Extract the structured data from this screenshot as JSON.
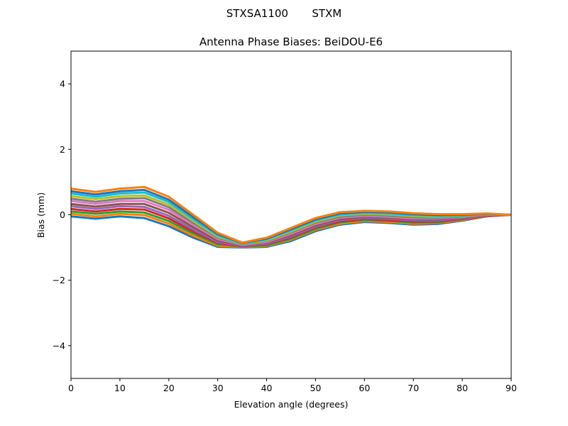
{
  "chart_data": {
    "type": "line",
    "suptitle": "STXSA1100       STXM",
    "title": "Antenna Phase Biases: BeiDOU-E6",
    "xlabel": "Elevation angle (degrees)",
    "ylabel": "Bias (mm)",
    "xlim": [
      0,
      90
    ],
    "ylim": [
      -5,
      5
    ],
    "xticks": [
      0,
      10,
      20,
      30,
      40,
      50,
      60,
      70,
      80,
      90
    ],
    "yticks": [
      -4,
      -2,
      0,
      2,
      4
    ],
    "ytick_labels": [
      "−4",
      "−2",
      "0",
      "2",
      "4"
    ],
    "grid": false,
    "colors": [
      "#1f77b4",
      "#ff7f0e",
      "#2ca02c",
      "#d62728",
      "#9467bd",
      "#8c564b",
      "#e377c2",
      "#7f7f7f",
      "#bcbd22",
      "#17becf"
    ],
    "x": [
      0,
      5,
      10,
      15,
      20,
      25,
      30,
      35,
      40,
      45,
      50,
      55,
      60,
      65,
      70,
      75,
      80,
      85,
      90
    ],
    "series": [
      {
        "values": [
          -0.05,
          -0.12,
          -0.05,
          -0.1,
          -0.35,
          -0.7,
          -0.98,
          -1.0,
          -0.98,
          -0.8,
          -0.5,
          -0.3,
          -0.22,
          -0.25,
          -0.3,
          -0.28,
          -0.18,
          -0.05,
          0
        ]
      },
      {
        "values": [
          0.03,
          -0.05,
          0.03,
          -0.01,
          -0.27,
          -0.64,
          -0.94,
          -0.99,
          -0.95,
          -0.76,
          -0.46,
          -0.27,
          -0.19,
          -0.22,
          -0.27,
          -0.25,
          -0.16,
          -0.04,
          0
        ]
      },
      {
        "values": [
          0.1,
          0.03,
          0.1,
          0.07,
          -0.19,
          -0.57,
          -0.9,
          -0.97,
          -0.93,
          -0.73,
          -0.43,
          -0.23,
          -0.16,
          -0.19,
          -0.24,
          -0.23,
          -0.14,
          -0.03,
          0
        ]
      },
      {
        "values": [
          0.18,
          0.1,
          0.18,
          0.16,
          -0.11,
          -0.51,
          -0.86,
          -0.96,
          -0.9,
          -0.69,
          -0.39,
          -0.2,
          -0.13,
          -0.16,
          -0.21,
          -0.2,
          -0.13,
          -0.03,
          0
        ]
      },
      {
        "values": [
          0.26,
          0.18,
          0.26,
          0.24,
          -0.03,
          -0.45,
          -0.83,
          -0.95,
          -0.88,
          -0.66,
          -0.36,
          -0.16,
          -0.1,
          -0.12,
          -0.17,
          -0.17,
          -0.11,
          -0.02,
          0
        ]
      },
      {
        "values": [
          0.33,
          0.25,
          0.33,
          0.33,
          0.06,
          -0.38,
          -0.79,
          -0.93,
          -0.85,
          -0.62,
          -0.32,
          -0.13,
          -0.07,
          -0.09,
          -0.14,
          -0.14,
          -0.09,
          -0.01,
          0
        ]
      },
      {
        "values": [
          0.42,
          0.33,
          0.42,
          0.42,
          0.15,
          -0.31,
          -0.74,
          -0.92,
          -0.83,
          -0.58,
          -0.28,
          -0.09,
          -0.03,
          -0.06,
          -0.11,
          -0.11,
          -0.07,
          0.0,
          0
        ]
      },
      {
        "values": [
          0.49,
          0.4,
          0.49,
          0.51,
          0.23,
          -0.25,
          -0.7,
          -0.9,
          -0.8,
          -0.54,
          -0.24,
          -0.06,
          0.0,
          -0.03,
          -0.08,
          -0.09,
          -0.05,
          0.01,
          0
        ]
      },
      {
        "values": [
          0.57,
          0.48,
          0.57,
          0.59,
          0.31,
          -0.19,
          -0.67,
          -0.89,
          -0.78,
          -0.51,
          -0.21,
          -0.02,
          0.03,
          0.01,
          -0.04,
          -0.06,
          -0.03,
          0.02,
          0
        ]
      },
      {
        "values": [
          0.65,
          0.55,
          0.65,
          0.68,
          0.39,
          -0.13,
          -0.63,
          -0.88,
          -0.75,
          -0.47,
          -0.17,
          0.01,
          0.06,
          0.04,
          -0.01,
          -0.03,
          -0.02,
          0.02,
          0
        ]
      },
      {
        "values": [
          0.72,
          0.62,
          0.72,
          0.76,
          0.46,
          -0.07,
          -0.59,
          -0.86,
          -0.73,
          -0.44,
          -0.14,
          0.04,
          0.09,
          0.07,
          0.02,
          -0.01,
          0.0,
          0.03,
          0
        ]
      },
      {
        "values": [
          0.8,
          0.7,
          0.8,
          0.85,
          0.55,
          0.0,
          -0.55,
          -0.85,
          -0.7,
          -0.4,
          -0.1,
          0.08,
          0.12,
          0.1,
          0.05,
          0.02,
          0.02,
          0.04,
          0
        ]
      }
    ]
  }
}
